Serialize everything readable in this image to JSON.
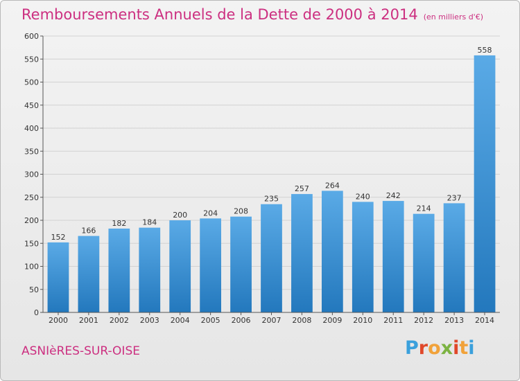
{
  "header": {
    "title": "Remboursements Annuels de la Dette de 2000 à 2014",
    "unit": "(en milliers d'€)"
  },
  "footer": {
    "city": "ASNIèRES-SUR-OISE",
    "logo_text": "Proxiti"
  },
  "colors": {
    "title": "#cc2f80",
    "bar_top": "#5aaae6",
    "bar_bottom": "#2378bd",
    "logo_letters": [
      "#3aa0dc",
      "#e0482a",
      "#f1a23a",
      "#7cb342",
      "#e0482a",
      "#f1a23a",
      "#3aa0dc"
    ]
  },
  "chart_data": {
    "type": "bar",
    "title": "Remboursements Annuels de la Dette de 2000 à 2014",
    "xlabel": "",
    "ylabel": "",
    "ylim": [
      0,
      600
    ],
    "yticks": [
      0,
      50,
      100,
      150,
      200,
      250,
      300,
      350,
      400,
      450,
      500,
      550,
      600
    ],
    "grid": true,
    "categories": [
      "2000",
      "2001",
      "2002",
      "2003",
      "2004",
      "2005",
      "2006",
      "2007",
      "2008",
      "2009",
      "2010",
      "2011",
      "2012",
      "2013",
      "2014"
    ],
    "values": [
      152,
      166,
      182,
      184,
      200,
      204,
      208,
      235,
      257,
      264,
      240,
      242,
      214,
      237,
      558
    ]
  }
}
